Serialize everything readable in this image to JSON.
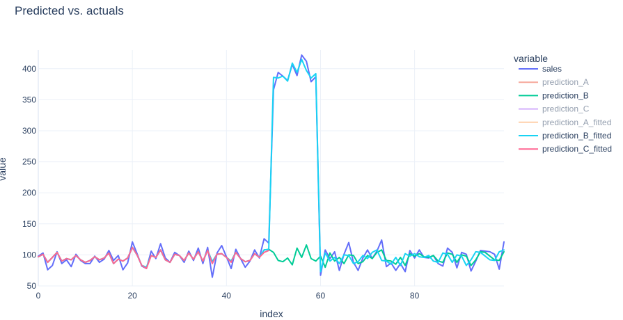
{
  "chart_data": {
    "type": "line",
    "title": "Predicted vs. actuals",
    "xlabel": "index",
    "ylabel": "value",
    "xlim": [
      0,
      99
    ],
    "ylim": [
      50,
      430
    ],
    "x_ticks": [
      0,
      20,
      40,
      60,
      80
    ],
    "y_ticks": [
      50,
      100,
      150,
      200,
      250,
      300,
      350,
      400
    ],
    "legend_title": "variable",
    "legend_position": "right",
    "series": [
      {
        "name": "sales",
        "color": "#636efa",
        "visible": true,
        "values": [
          98,
          103,
          76,
          83,
          105,
          86,
          92,
          81,
          101,
          91,
          86,
          86,
          98,
          88,
          93,
          107,
          91,
          99,
          76,
          87,
          121,
          102,
          82,
          78,
          106,
          94,
          118,
          95,
          88,
          104,
          99,
          88,
          106,
          91,
          111,
          86,
          112,
          64,
          103,
          115,
          97,
          78,
          109,
          94,
          80,
          90,
          108,
          95,
          126,
          119,
          366,
          394,
          388,
          381,
          407,
          389,
          422,
          412,
          379,
          387,
          67,
          108,
          94,
          105,
          75,
          101,
          120,
          88,
          75,
          95,
          108,
          94,
          106,
          124,
          81,
          87,
          75,
          86,
          73,
          107,
          95,
          108,
          96,
          95,
          99,
          86,
          82,
          111,
          104,
          79,
          104,
          101,
          74,
          90,
          107,
          106,
          105,
          101,
          77,
          121
        ]
      },
      {
        "name": "prediction_A",
        "color": "#EF553B",
        "visible": false,
        "values": []
      },
      {
        "name": "prediction_B",
        "color": "#00cc96",
        "visible": true,
        "values": [
          97,
          101,
          88,
          96,
          104,
          90,
          94,
          92,
          99,
          92,
          88,
          91,
          97,
          92,
          95,
          103,
          86,
          93,
          90,
          95,
          112,
          100,
          83,
          80,
          99,
          96,
          108,
          92,
          88,
          101,
          99,
          91,
          103,
          93,
          105,
          90,
          107,
          89,
          101,
          102,
          96,
          90,
          104,
          94,
          89,
          91,
          102,
          96,
          108,
          109,
          104,
          91,
          89,
          95,
          84,
          111,
          96,
          116,
          94,
          90,
          98,
          80,
          103,
          90,
          96,
          86,
          100,
          99,
          86,
          89,
          99,
          94,
          104,
          108,
          91,
          90,
          85,
          96,
          83,
          102,
          98,
          102,
          97,
          96,
          99,
          90,
          88,
          103,
          101,
          88,
          100,
          98,
          83,
          92,
          105,
          104,
          98,
          92,
          91,
          105
        ]
      },
      {
        "name": "prediction_C",
        "color": "#ab63fa",
        "visible": false,
        "values": []
      },
      {
        "name": "prediction_A_fitted",
        "color": "#FFA15A",
        "visible": false,
        "values": []
      },
      {
        "name": "prediction_B_fitted",
        "color": "#19d3f3",
        "visible": true,
        "values": [
          97,
          101,
          88,
          96,
          104,
          90,
          94,
          92,
          99,
          92,
          88,
          91,
          97,
          92,
          95,
          103,
          86,
          93,
          90,
          95,
          112,
          100,
          83,
          80,
          99,
          96,
          108,
          92,
          88,
          101,
          99,
          91,
          103,
          93,
          105,
          90,
          107,
          89,
          101,
          102,
          96,
          90,
          104,
          94,
          89,
          91,
          102,
          96,
          108,
          109,
          386,
          385,
          388,
          380,
          409,
          394,
          415,
          397,
          385,
          392,
          73,
          103,
          90,
          96,
          86,
          100,
          99,
          86,
          89,
          99,
          94,
          104,
          108,
          91,
          90,
          85,
          96,
          83,
          102,
          98,
          102,
          97,
          96,
          99,
          90,
          88,
          103,
          101,
          88,
          100,
          98,
          83,
          92,
          105,
          104,
          98,
          92,
          91,
          105,
          108
        ]
      },
      {
        "name": "prediction_C_fitted",
        "color": "#FF6692",
        "visible": true,
        "values": [
          97,
          101,
          88,
          96,
          104,
          90,
          94,
          92,
          99,
          92,
          88,
          91,
          97,
          92,
          95,
          103,
          86,
          93,
          90,
          95,
          112,
          100,
          83,
          78,
          99,
          96,
          108,
          92,
          88,
          101,
          99,
          91,
          103,
          93,
          105,
          90,
          107,
          86,
          101,
          102,
          96,
          88,
          104,
          94,
          89,
          91,
          102,
          96,
          104,
          107
        ]
      }
    ]
  }
}
